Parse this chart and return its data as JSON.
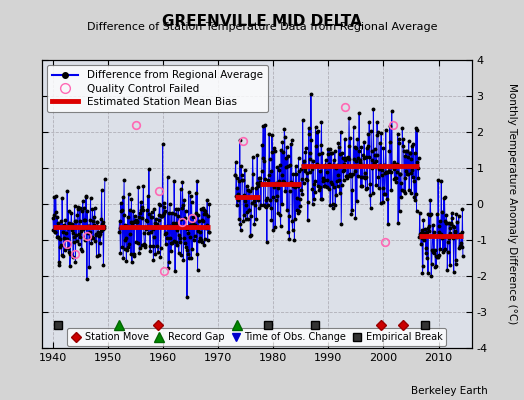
{
  "title": "GREENVILLE MID DELTA",
  "subtitle": "Difference of Station Temperature Data from Regional Average",
  "ylabel": "Monthly Temperature Anomaly Difference (°C)",
  "xlim": [
    1938,
    2016
  ],
  "ylim": [
    -4,
    4
  ],
  "yticks": [
    -4,
    -3,
    -2,
    -1,
    0,
    1,
    2,
    3,
    4
  ],
  "xticks": [
    1940,
    1950,
    1960,
    1970,
    1980,
    1990,
    2000,
    2010
  ],
  "fig_bg": "#d4d4d4",
  "plot_bg": "#dce0e8",
  "grid_color": "#b0b0b8",
  "line_color": "#0000ee",
  "dot_color": "#000000",
  "bias_color": "#dd0000",
  "qc_color": "#ff69b4",
  "data_segments": [
    {
      "x_start": 1940.0,
      "x_end": 1949.5,
      "bias": -0.65,
      "noise": 0.55
    },
    {
      "x_start": 1952.0,
      "x_end": 1968.5,
      "bias": -0.65,
      "noise": 0.6
    },
    {
      "x_start": 1973.0,
      "x_end": 1977.5,
      "bias": 0.2,
      "noise": 0.75
    },
    {
      "x_start": 1977.5,
      "x_end": 1985.0,
      "bias": 0.55,
      "noise": 0.75
    },
    {
      "x_start": 1985.0,
      "x_end": 1999.0,
      "bias": 1.05,
      "noise": 0.65
    },
    {
      "x_start": 1999.0,
      "x_end": 2006.5,
      "bias": 1.05,
      "noise": 0.6
    },
    {
      "x_start": 2006.5,
      "x_end": 2014.5,
      "bias": -0.9,
      "noise": 0.6
    }
  ],
  "bias_segments": [
    {
      "x_start": 1940.0,
      "x_end": 1949.5,
      "bias": -0.65
    },
    {
      "x_start": 1952.0,
      "x_end": 1968.5,
      "bias": -0.65
    },
    {
      "x_start": 1973.0,
      "x_end": 1977.5,
      "bias": 0.2
    },
    {
      "x_start": 1977.5,
      "x_end": 1985.0,
      "bias": 0.55
    },
    {
      "x_start": 1985.0,
      "x_end": 1999.0,
      "bias": 1.05
    },
    {
      "x_start": 1999.0,
      "x_end": 2006.5,
      "bias": 1.05
    },
    {
      "x_start": 2006.5,
      "x_end": 2014.5,
      "bias": -0.9
    }
  ],
  "qc_points": [
    [
      1942.5,
      -1.1
    ],
    [
      1944.0,
      -1.4
    ],
    [
      1946.2,
      -0.9
    ],
    [
      1955.0,
      2.2
    ],
    [
      1959.3,
      0.35
    ],
    [
      1960.2,
      -1.85
    ],
    [
      1963.5,
      -0.5
    ],
    [
      1965.2,
      -0.4
    ],
    [
      1974.5,
      1.75
    ],
    [
      1993.0,
      2.7
    ],
    [
      2000.3,
      -1.05
    ],
    [
      2001.8,
      2.2
    ]
  ],
  "event_markers": [
    {
      "year": 1941.0,
      "type": "empirical_break"
    },
    {
      "year": 1952.0,
      "type": "record_gap"
    },
    {
      "year": 1959.0,
      "type": "station_move"
    },
    {
      "year": 1973.5,
      "type": "record_gap"
    },
    {
      "year": 1979.0,
      "type": "empirical_break"
    },
    {
      "year": 1987.5,
      "type": "empirical_break"
    },
    {
      "year": 1999.5,
      "type": "station_move"
    },
    {
      "year": 2003.5,
      "type": "station_move"
    },
    {
      "year": 2007.5,
      "type": "empirical_break"
    }
  ],
  "seed": 42
}
